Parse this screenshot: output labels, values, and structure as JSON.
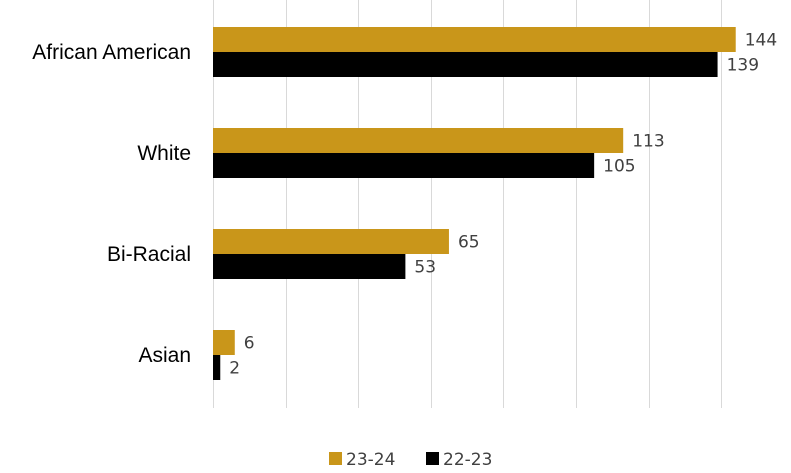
{
  "chart_data": {
    "type": "bar",
    "orientation": "horizontal",
    "categories": [
      "African American",
      "White",
      "Bi-Racial",
      "Asian"
    ],
    "series": [
      {
        "name": "23-24",
        "color": "#c9961a",
        "values": [
          144,
          113,
          65,
          6
        ]
      },
      {
        "name": "22-23",
        "color": "#000000",
        "values": [
          139,
          105,
          53,
          2
        ]
      }
    ],
    "xlim": [
      0,
      160
    ],
    "grid": true,
    "legend_position": "bottom",
    "data_labels": true
  }
}
